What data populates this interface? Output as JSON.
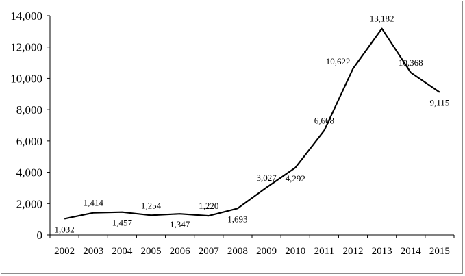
{
  "chart_data": {
    "type": "line",
    "title": "",
    "xlabel": "",
    "ylabel": "",
    "categories": [
      "2002",
      "2003",
      "2004",
      "2005",
      "2006",
      "2007",
      "2008",
      "2009",
      "2010",
      "2011",
      "2012",
      "2013",
      "2014",
      "2015"
    ],
    "series": [
      {
        "values": [
          1032,
          1414,
          1457,
          1254,
          1347,
          1220,
          1693,
          3027,
          4292,
          6668,
          10622,
          13182,
          10368,
          9115
        ],
        "labels": [
          "1,032",
          "1,414",
          "1,457",
          "1,254",
          "1,347",
          "1,220",
          "1,693",
          "3,027",
          "4,292",
          "6,668",
          "10,622",
          "13,182",
          "10,368",
          "9,115"
        ],
        "label_positions": [
          "below",
          "above",
          "below",
          "above",
          "below",
          "above",
          "below",
          "above",
          "below",
          "above",
          "left",
          "above",
          "above",
          "below"
        ],
        "color": "#000000"
      }
    ],
    "ylim": [
      0,
      14000
    ],
    "yticks": [
      0,
      2000,
      4000,
      6000,
      8000,
      10000,
      12000,
      14000
    ],
    "ytick_labels": [
      "0",
      "2,000",
      "4,000",
      "6,000",
      "8,000",
      "10,000",
      "12,000",
      "14,000"
    ],
    "grid": false,
    "legend": "none"
  }
}
